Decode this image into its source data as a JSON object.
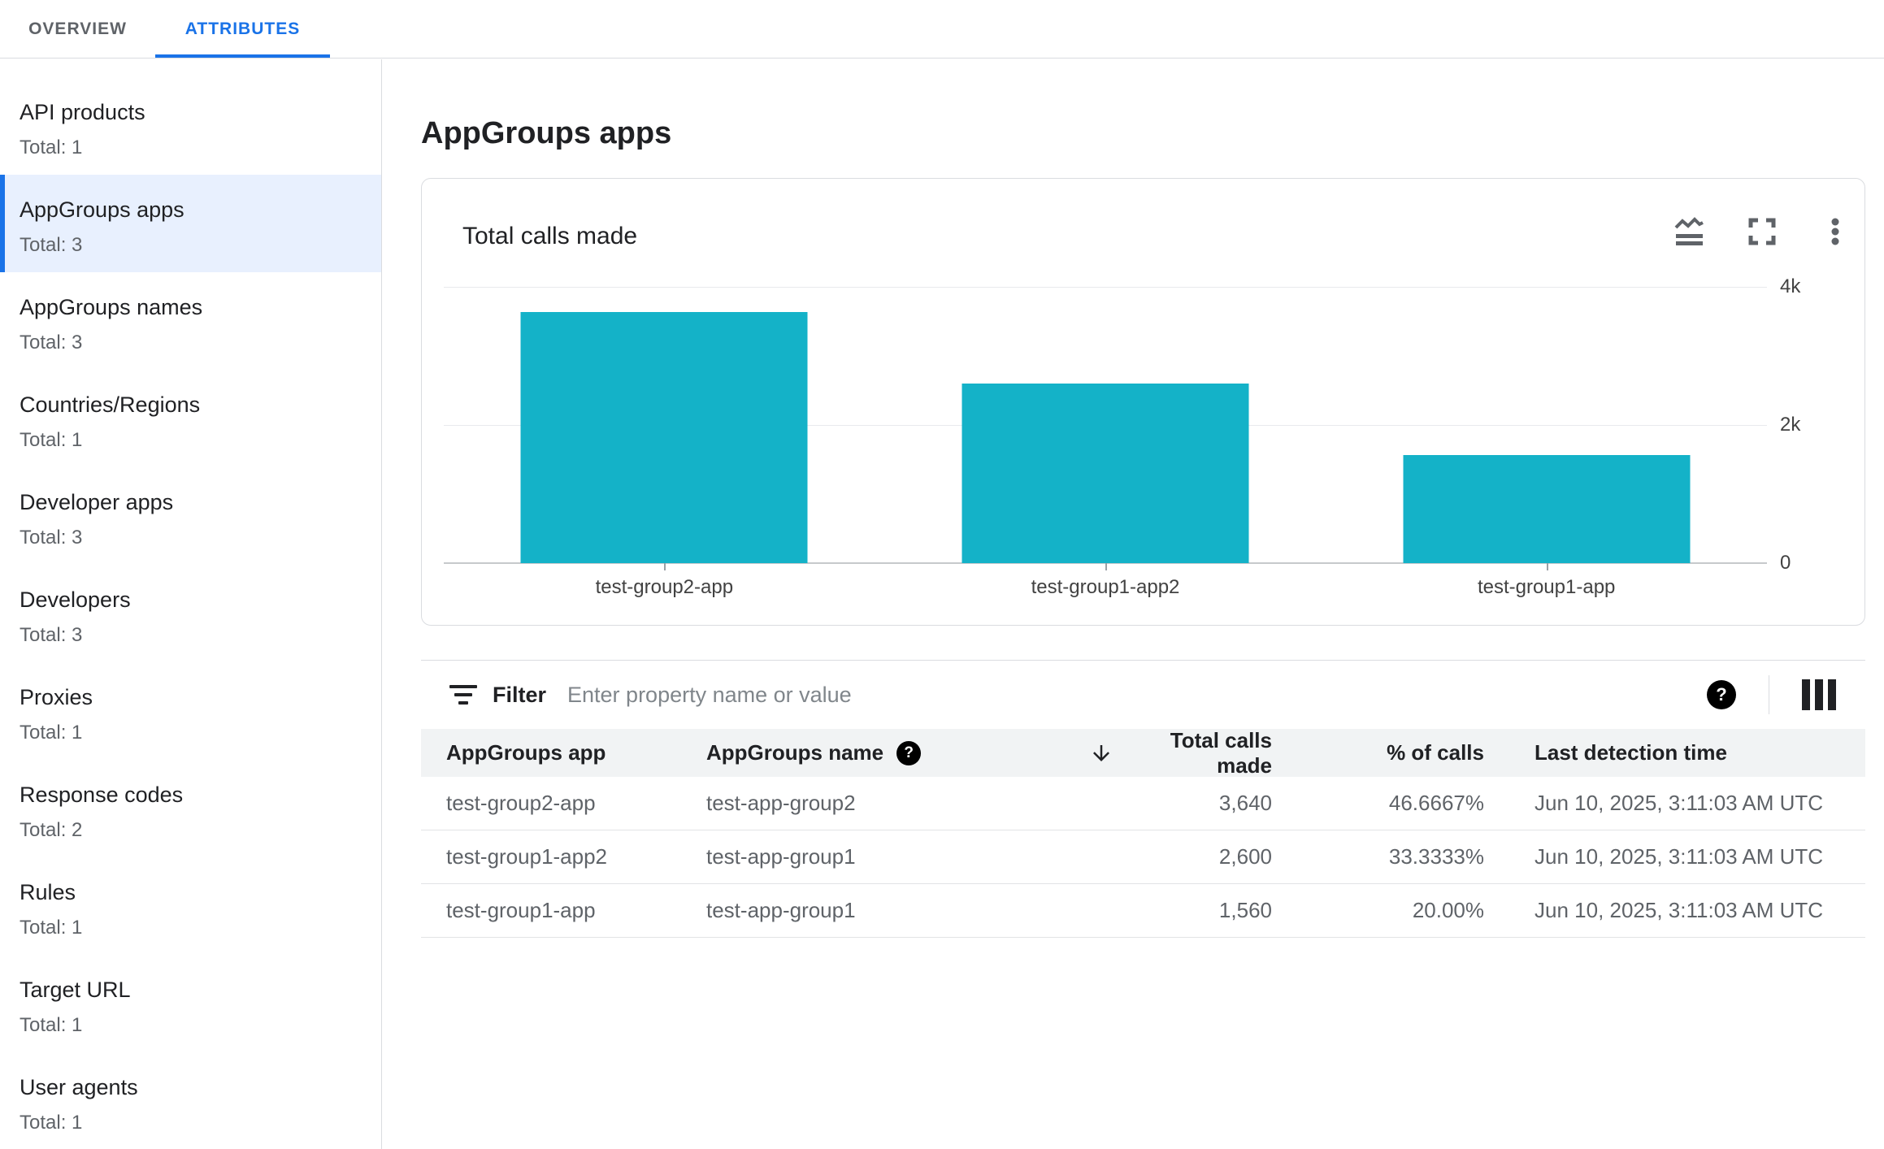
{
  "tabs": [
    {
      "label": "OVERVIEW",
      "selected": false
    },
    {
      "label": "ATTRIBUTES",
      "selected": true
    }
  ],
  "sidebar": {
    "items": [
      {
        "label": "API products",
        "total": "Total: 1",
        "selected": false
      },
      {
        "label": "AppGroups apps",
        "total": "Total: 3",
        "selected": true
      },
      {
        "label": "AppGroups names",
        "total": "Total: 3",
        "selected": false
      },
      {
        "label": "Countries/Regions",
        "total": "Total: 1",
        "selected": false
      },
      {
        "label": "Developer apps",
        "total": "Total: 3",
        "selected": false
      },
      {
        "label": "Developers",
        "total": "Total: 3",
        "selected": false
      },
      {
        "label": "Proxies",
        "total": "Total: 1",
        "selected": false
      },
      {
        "label": "Response codes",
        "total": "Total: 2",
        "selected": false
      },
      {
        "label": "Rules",
        "total": "Total: 1",
        "selected": false
      },
      {
        "label": "Target URL",
        "total": "Total: 1",
        "selected": false
      },
      {
        "label": "User agents",
        "total": "Total: 1",
        "selected": false
      }
    ]
  },
  "main": {
    "page_title": "AppGroups apps",
    "chart_card": {
      "title": "Total calls made",
      "icons": [
        "area-chart-icon",
        "fullscreen-icon",
        "more-options-kebab-icon"
      ]
    },
    "filter": {
      "label": "Filter",
      "placeholder": "Enter property name or value",
      "icons": [
        "filter-list-icon",
        "help-icon",
        "column-selector-icon"
      ]
    },
    "table": {
      "columns": [
        {
          "label": "AppGroups app"
        },
        {
          "label": "AppGroups name",
          "help_icon": true
        },
        {
          "label": "Total calls made",
          "sorted": "desc"
        },
        {
          "label": "% of calls"
        },
        {
          "label": "Last detection time"
        }
      ],
      "rows": [
        {
          "app": "test-group2-app",
          "name": "test-app-group2",
          "calls": "3,640",
          "pct": "46.6667%",
          "time": "Jun 10, 2025, 3:11:03 AM UTC"
        },
        {
          "app": "test-group1-app2",
          "name": "test-app-group1",
          "calls": "2,600",
          "pct": "33.3333%",
          "time": "Jun 10, 2025, 3:11:03 AM UTC"
        },
        {
          "app": "test-group1-app",
          "name": "test-app-group1",
          "calls": "1,560",
          "pct": "20.00%",
          "time": "Jun 10, 2025, 3:11:03 AM UTC"
        }
      ]
    }
  },
  "chart_data": {
    "type": "bar",
    "title": "Total calls made",
    "categories": [
      "test-group2-app",
      "test-group1-app2",
      "test-group1-app"
    ],
    "values": [
      3640,
      2600,
      1560
    ],
    "xlabel": "",
    "ylabel": "",
    "ylim": [
      0,
      4000
    ],
    "yticks": [
      {
        "label": "4k",
        "value": 4000
      },
      {
        "label": "2k",
        "value": 2000
      },
      {
        "label": "0",
        "value": 0
      }
    ],
    "ytick_side": "right",
    "grid": "horizontal",
    "legend": "none",
    "bar_color": "#14b2c8"
  },
  "colors": {
    "accent_blue": "#1a73e8",
    "selected_bg": "#e8f0fe",
    "bar_teal": "#14b2c8",
    "border": "#dadce0",
    "text_dark": "#202124",
    "text_gray": "#5f6368"
  }
}
